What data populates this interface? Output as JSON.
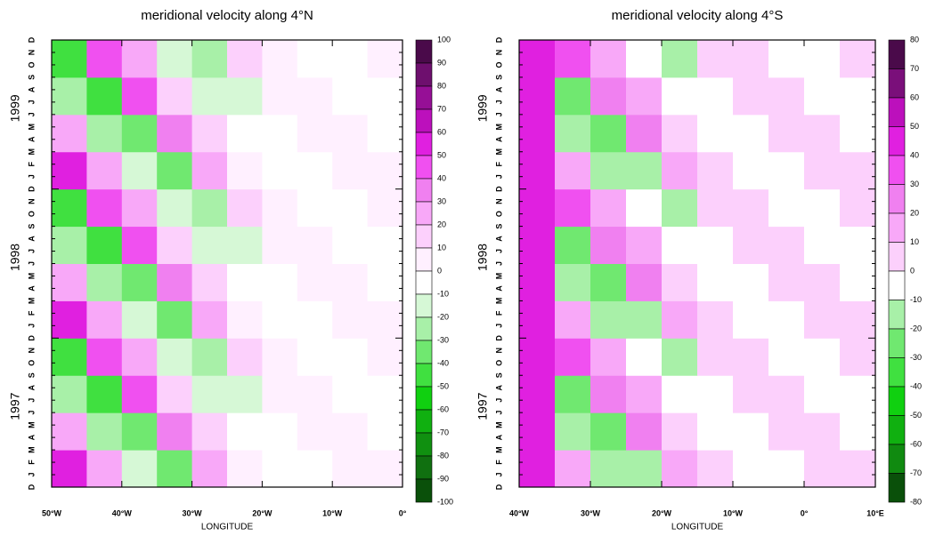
{
  "chart_data": [
    {
      "type": "heatmap",
      "title": "meridional velocity along 4°N",
      "xlabel": "LONGITUDE",
      "xlim": [
        -50,
        0
      ],
      "xticks": [
        {
          "value": -50,
          "label": "50°W"
        },
        {
          "value": -40,
          "label": "40°W"
        },
        {
          "value": -30,
          "label": "30°W"
        },
        {
          "value": -20,
          "label": "20°W"
        },
        {
          "value": -10,
          "label": "10°W"
        },
        {
          "value": 0,
          "label": "0°"
        }
      ],
      "months": [
        "D",
        "J",
        "F",
        "M",
        "A",
        "M",
        "J",
        "J",
        "A",
        "S",
        "O",
        "N",
        "D",
        "J",
        "F",
        "M",
        "A",
        "M",
        "J",
        "J",
        "A",
        "S",
        "O",
        "N",
        "D",
        "J",
        "F",
        "M",
        "A",
        "M",
        "J",
        "J",
        "A",
        "S",
        "O",
        "N",
        "D"
      ],
      "years": [
        "1997",
        "1998",
        "1999"
      ],
      "x": [
        -47.5,
        -42.5,
        -37.5,
        -32.5,
        -27.5,
        -22.5,
        -17.5,
        -12.5,
        -7.5,
        -2.5
      ],
      "z": [
        [
          50,
          22,
          -20,
          -35,
          25,
          8,
          -3,
          -5,
          3,
          1
        ],
        [
          25,
          -22,
          -40,
          35,
          12,
          -8,
          -5,
          5,
          2,
          -1
        ],
        [
          -25,
          -45,
          40,
          18,
          -12,
          -15,
          5,
          3,
          -2,
          -2
        ],
        [
          -50,
          45,
          20,
          -18,
          -25,
          15,
          3,
          -3,
          -3,
          2
        ],
        [
          50,
          22,
          -20,
          -35,
          25,
          8,
          -3,
          -5,
          3,
          1
        ],
        [
          25,
          -22,
          -40,
          35,
          12,
          -8,
          -5,
          5,
          2,
          -1
        ],
        [
          -25,
          -45,
          40,
          18,
          -12,
          -15,
          5,
          3,
          -2,
          -2
        ],
        [
          -50,
          45,
          20,
          -18,
          -25,
          15,
          3,
          -3,
          -3,
          2
        ],
        [
          50,
          22,
          -20,
          -35,
          25,
          8,
          -3,
          -5,
          3,
          1
        ],
        [
          25,
          -22,
          -40,
          35,
          12,
          -8,
          -5,
          5,
          2,
          -1
        ],
        [
          -25,
          -45,
          40,
          18,
          -12,
          -15,
          5,
          3,
          -2,
          -2
        ],
        [
          -50,
          45,
          20,
          -18,
          -25,
          15,
          3,
          -3,
          -3,
          2
        ]
      ],
      "levels": [
        100,
        90,
        80,
        70,
        60,
        50,
        40,
        30,
        20,
        10,
        0,
        -10,
        -20,
        -30,
        -40,
        -50,
        -60,
        -70,
        -80,
        -90,
        -100
      ],
      "colors": [
        "#4a0a4a",
        "#6e0f6e",
        "#960f96",
        "#bc10bc",
        "#e020e0",
        "#f050f0",
        "#f080f0",
        "#f8a8f8",
        "#fcd0fc",
        "#fff0ff",
        "#ffffff",
        "#d6f8d6",
        "#a8f0a8",
        "#70e870",
        "#40e040",
        "#10d010",
        "#10b010",
        "#109010",
        "#107010",
        "#0a500a"
      ]
    },
    {
      "type": "heatmap",
      "title": "meridional velocity along 4°S",
      "xlabel": "LONGITUDE",
      "xlim": [
        -40,
        10
      ],
      "xticks": [
        {
          "value": -40,
          "label": "40°W"
        },
        {
          "value": -30,
          "label": "30°W"
        },
        {
          "value": -20,
          "label": "20°W"
        },
        {
          "value": -10,
          "label": "10°W"
        },
        {
          "value": 0,
          "label": "0°"
        },
        {
          "value": 10,
          "label": "10°E"
        }
      ],
      "months": [
        "D",
        "J",
        "F",
        "M",
        "A",
        "M",
        "J",
        "J",
        "A",
        "S",
        "O",
        "N",
        "D",
        "J",
        "F",
        "M",
        "A",
        "M",
        "J",
        "J",
        "A",
        "S",
        "O",
        "N",
        "D",
        "J",
        "F",
        "M",
        "A",
        "M",
        "J",
        "J",
        "A",
        "S",
        "O",
        "N",
        "D"
      ],
      "years": [
        "1997",
        "1998",
        "1999"
      ],
      "x": [
        -37.5,
        -32.5,
        -27.5,
        -22.5,
        -17.5,
        -12.5,
        -7.5,
        -2.5,
        2.5,
        7.5
      ],
      "z": [
        [
          45,
          15,
          -12,
          -20,
          15,
          4,
          -2,
          -2,
          2,
          1
        ],
        [
          45,
          -15,
          -25,
          20,
          8,
          -4,
          -4,
          2,
          1,
          -1
        ],
        [
          45,
          -30,
          25,
          10,
          -8,
          -8,
          4,
          1,
          -1,
          -1
        ],
        [
          45,
          30,
          12,
          -10,
          -15,
          8,
          2,
          -1,
          -2,
          1
        ],
        [
          45,
          15,
          -12,
          -20,
          15,
          4,
          -2,
          -2,
          2,
          1
        ],
        [
          45,
          -15,
          -25,
          20,
          8,
          -4,
          -4,
          2,
          1,
          -1
        ],
        [
          45,
          -30,
          25,
          10,
          -8,
          -8,
          4,
          1,
          -1,
          -1
        ],
        [
          45,
          30,
          12,
          -10,
          -15,
          8,
          2,
          -1,
          -2,
          1
        ],
        [
          45,
          15,
          -12,
          -20,
          15,
          4,
          -2,
          -2,
          2,
          1
        ],
        [
          45,
          -15,
          -25,
          20,
          8,
          -4,
          -4,
          2,
          1,
          -1
        ],
        [
          45,
          -30,
          25,
          10,
          -8,
          -8,
          4,
          1,
          -1,
          -1
        ],
        [
          45,
          30,
          12,
          -10,
          -15,
          8,
          2,
          -1,
          -2,
          1
        ]
      ],
      "levels": [
        80,
        70,
        60,
        50,
        40,
        30,
        20,
        10,
        0,
        -10,
        -20,
        -30,
        -40,
        -50,
        -60,
        -70,
        -80
      ],
      "colors": [
        "#4a0a4a",
        "#7a0f7a",
        "#bc10bc",
        "#e020e0",
        "#f050f0",
        "#f080f0",
        "#f8a8f8",
        "#fcd0fc",
        "#ffffff",
        "#a8f0a8",
        "#70e870",
        "#40e040",
        "#10d010",
        "#10b010",
        "#108a10",
        "#0a500a"
      ]
    }
  ]
}
